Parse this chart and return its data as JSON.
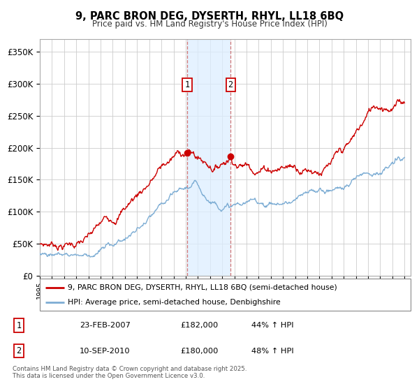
{
  "title": "9, PARC BRON DEG, DYSERTH, RHYL, LL18 6BQ",
  "subtitle": "Price paid vs. HM Land Registry's House Price Index (HPI)",
  "legend_entries": [
    "9, PARC BRON DEG, DYSERTH, RHYL, LL18 6BQ (semi-detached house)",
    "HPI: Average price, semi-detached house, Denbighshire"
  ],
  "transactions": [
    {
      "label": "1",
      "date": "23-FEB-2007",
      "price": 182000,
      "hpi_pct": "44% ↑ HPI",
      "date_decimal": 2007.12
    },
    {
      "label": "2",
      "date": "10-SEP-2010",
      "price": 180000,
      "hpi_pct": "48% ↑ HPI",
      "date_decimal": 2010.69
    }
  ],
  "footer": "Contains HM Land Registry data © Crown copyright and database right 2025.\nThis data is licensed under the Open Government Licence v3.0.",
  "house_color": "#cc0000",
  "hpi_color": "#7dadd4",
  "shading_color": "#ddeeff",
  "ylim": [
    0,
    370000
  ],
  "ytick_values": [
    0,
    50000,
    100000,
    150000,
    200000,
    250000,
    300000,
    350000
  ],
  "ytick_labels": [
    "£0",
    "£50K",
    "£100K",
    "£150K",
    "£200K",
    "£250K",
    "£300K",
    "£350K"
  ],
  "xlim_start": 1995,
  "xlim_end": 2025.5,
  "grid_color": "#cccccc",
  "background_color": "#ffffff"
}
